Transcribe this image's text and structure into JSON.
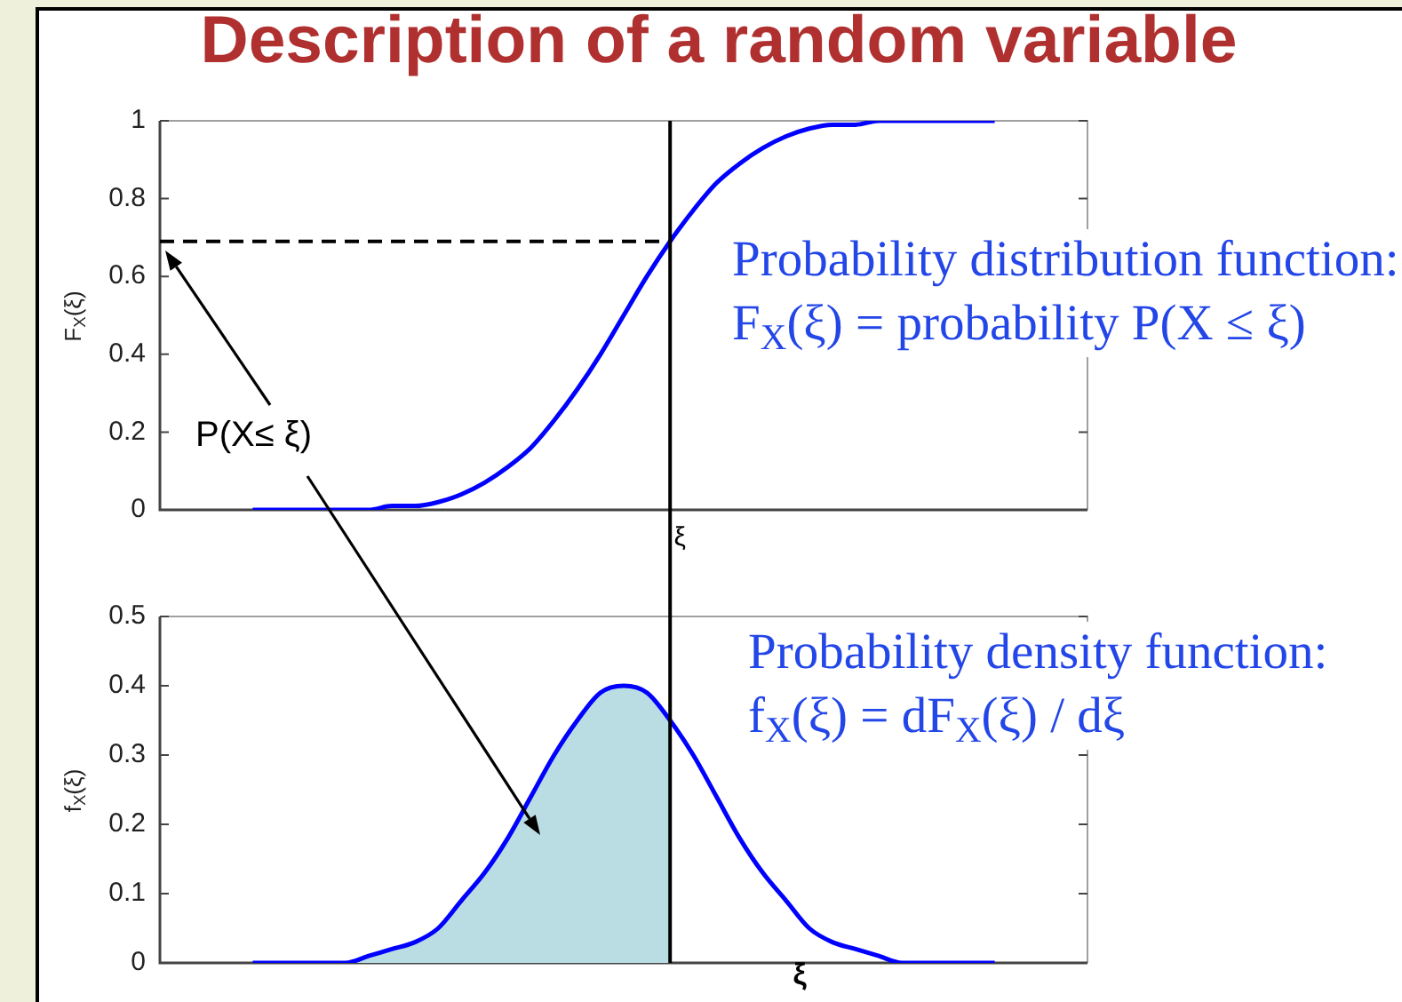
{
  "chart_data": [
    {
      "type": "line",
      "title": "Description of a random variable",
      "ylabel": "F$_{X}$(ξ)",
      "marker": "none",
      "categories": [
        null,
        null,
        null,
        null,
        null,
        null,
        null,
        null,
        null,
        null,
        null,
        null,
        null,
        null,
        null,
        null,
        null,
        null,
        null,
        null,
        null,
        null,
        "ξ",
        null,
        null,
        null,
        null,
        null,
        null,
        null,
        null,
        null,
        null,
        null,
        null,
        null,
        null,
        null,
        null,
        null,
        null
      ],
      "series": [
        {
          "color": "#0000ff",
          "values": [
            null,
            null,
            null,
            null,
            0,
            0,
            0,
            0,
            0,
            0,
            0.01,
            0.01,
            0.02,
            0.04,
            0.07,
            0.11,
            0.16,
            0.23,
            0.31,
            0.4,
            0.5,
            0.6,
            0.69,
            0.77,
            0.84,
            0.89,
            0.93,
            0.96,
            0.98,
            0.99,
            0.99,
            1,
            1,
            1,
            1,
            1,
            1,
            null,
            null,
            null,
            null
          ]
        },
        {
          "color": "#000000",
          "line_style": "dashed",
          "values": [
            0.69,
            0.69,
            0.69,
            0.69,
            0.69,
            0.69,
            0.69,
            0.69,
            0.69,
            0.69,
            0.69,
            0.69,
            0.69,
            0.69,
            0.69,
            0.69,
            0.69,
            0.69,
            0.69,
            0.69,
            0.69,
            0.69,
            0.69,
            null,
            null,
            null,
            null,
            null,
            null,
            null,
            null,
            null,
            null,
            null,
            null,
            null,
            null,
            null,
            null,
            null,
            null
          ]
        }
      ],
      "ylim": [
        0,
        1
      ],
      "yticks": [
        0,
        0.2,
        0.4,
        0.6,
        0.8,
        1
      ],
      "ref_lines": [
        {
          "axis": "x",
          "value": "ξ",
          "color": "#000000"
        }
      ],
      "annotations": [
        "P(X≤ ξ)",
        "Probability distribution function:\nF$_{X}$(ξ) = probability P(X ≤ ξ)"
      ]
    },
    {
      "type": "line",
      "xlabel": "ξ",
      "ylabel": "f$_{X}$(ξ)",
      "marker": "none",
      "tick_labels": "y",
      "categories": [
        null,
        null,
        null,
        null,
        null,
        null,
        null,
        null,
        null,
        null,
        null,
        null,
        null,
        null,
        null,
        null,
        null,
        null,
        null,
        null,
        null,
        null,
        null,
        null,
        null,
        null,
        null,
        null,
        null,
        null,
        null,
        null,
        null,
        null,
        null,
        null,
        null,
        null,
        null,
        null,
        null
      ],
      "series": [
        {
          "color": "#0000ff",
          "values": [
            null,
            null,
            null,
            null,
            0,
            0,
            0,
            0,
            0,
            0.01,
            0.02,
            0.03,
            0.05,
            0.09,
            0.13,
            0.18,
            0.24,
            0.3,
            0.35,
            0.39,
            0.4,
            0.39,
            0.35,
            0.3,
            0.24,
            0.18,
            0.13,
            0.09,
            0.05,
            0.03,
            0.02,
            0.01,
            0,
            0,
            0,
            0,
            0,
            null,
            null,
            null,
            null
          ]
        },
        {
          "type": "area",
          "color": "#b9dde2",
          "values": [
            null,
            null,
            null,
            null,
            0,
            0,
            0,
            0,
            0,
            0.01,
            0.02,
            0.03,
            0.05,
            0.09,
            0.13,
            0.18,
            0.24,
            0.3,
            0.35,
            0.39,
            0.4,
            0.39,
            0.35,
            null,
            null,
            null,
            null,
            null,
            null,
            null,
            null,
            null,
            null,
            null,
            null,
            null,
            null,
            null,
            null,
            null,
            null
          ]
        }
      ],
      "ylim": [
        0,
        0.5
      ],
      "yticks": [
        0,
        0.1,
        0.2,
        0.3,
        0.4,
        0.5
      ],
      "annotations": [
        "Probability density function:\nf$_{X}$(ξ) = dF$_{X}$(ξ) / dξ"
      ]
    }
  ]
}
